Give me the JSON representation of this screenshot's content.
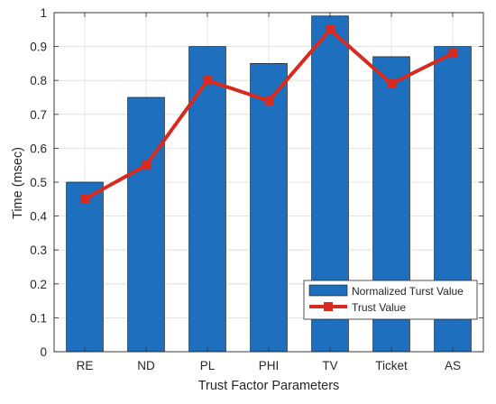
{
  "chart_data": {
    "type": "bar",
    "title": "",
    "xlabel": "Trust Factor Parameters",
    "ylabel": "Time (msec)",
    "categories": [
      "RE",
      "ND",
      "PL",
      "PHI",
      "TV",
      "Ticket",
      "AS"
    ],
    "ylim": [
      0,
      1
    ],
    "yticks": [
      "0",
      "0.1",
      "0.2",
      "0.3",
      "0.4",
      "0.5",
      "0.6",
      "0.7",
      "0.8",
      "0.9",
      "1"
    ],
    "grid": true,
    "legend_position": "bottom-right",
    "series": [
      {
        "name": "Normalized Turst Value",
        "kind": "bar",
        "color": "#1f6fbf",
        "values": [
          0.5,
          0.75,
          0.9,
          0.85,
          0.99,
          0.87,
          0.9
        ]
      },
      {
        "name": "Trust Value",
        "kind": "line",
        "marker": "square",
        "color": "#d62b1e",
        "values": [
          0.45,
          0.55,
          0.8,
          0.74,
          0.95,
          0.79,
          0.88
        ]
      }
    ]
  }
}
